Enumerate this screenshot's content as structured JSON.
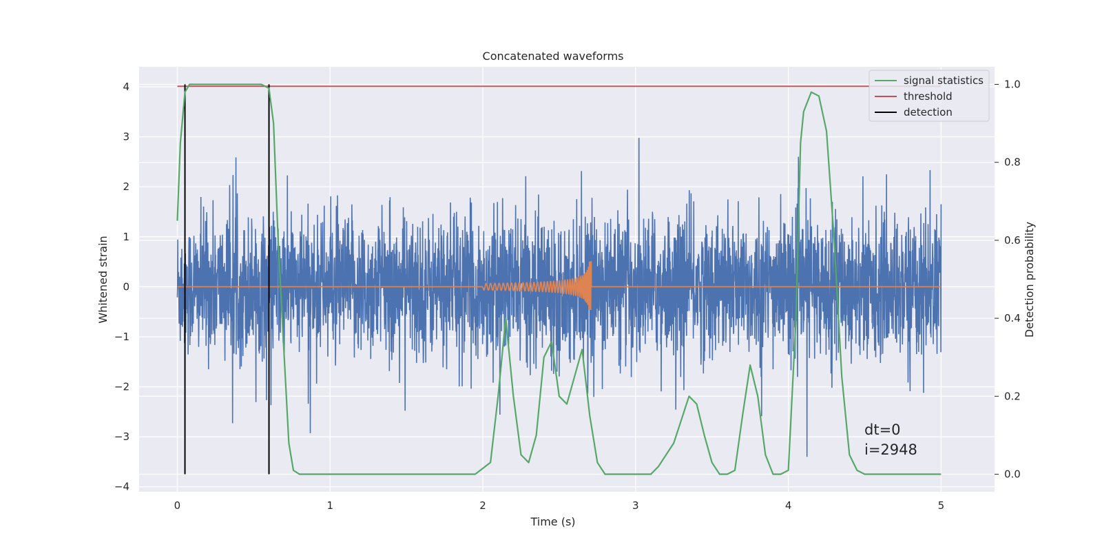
{
  "chart_data": {
    "type": "line",
    "title": "Concatenated waveforms",
    "xlabel": "Time (s)",
    "ylabel": "Whitened strain",
    "y2label": "Detection probability",
    "xlim": [
      -0.25,
      5.35
    ],
    "ylim": [
      -4.1,
      4.4
    ],
    "y2lim": [
      -0.045,
      1.045
    ],
    "x_ticks": [
      "0",
      "1",
      "2",
      "3",
      "4",
      "5"
    ],
    "y_ticks": [
      "4",
      "3",
      "2",
      "1",
      "0",
      "−1",
      "−2",
      "−3",
      "−4"
    ],
    "y2_ticks": [
      "1.0",
      "0.8",
      "0.6",
      "0.4",
      "0.2",
      "0.0"
    ],
    "grid": true,
    "legend_placement": "top-right",
    "colors": {
      "strain": "#4c72b0",
      "template": "#dd8452",
      "signal_statistics": "#55a868",
      "threshold": "#c44e52",
      "detection": "#000000",
      "background": "#eaeaf2",
      "grid": "#ffffff"
    },
    "series": [
      {
        "name": "signal statistics",
        "axis": "right",
        "x": [
          0.0,
          0.02,
          0.05,
          0.08,
          0.15,
          0.3,
          0.45,
          0.55,
          0.6,
          0.63,
          0.66,
          0.7,
          0.73,
          0.76,
          0.8,
          1.0,
          1.5,
          1.95,
          2.05,
          2.1,
          2.15,
          2.2,
          2.25,
          2.3,
          2.35,
          2.4,
          2.45,
          2.5,
          2.55,
          2.6,
          2.65,
          2.7,
          2.75,
          2.8,
          2.85,
          2.9,
          3.0,
          3.1,
          3.15,
          3.2,
          3.25,
          3.3,
          3.35,
          3.4,
          3.45,
          3.5,
          3.55,
          3.6,
          3.65,
          3.7,
          3.75,
          3.8,
          3.85,
          3.9,
          3.95,
          4.0,
          4.05,
          4.08,
          4.1,
          4.15,
          4.2,
          4.25,
          4.3,
          4.35,
          4.4,
          4.45,
          4.5,
          4.6,
          5.0
        ],
        "values": [
          0.65,
          0.85,
          0.98,
          1.0,
          1.0,
          1.0,
          1.0,
          1.0,
          0.99,
          0.9,
          0.6,
          0.3,
          0.08,
          0.01,
          0.0,
          0.0,
          0.0,
          0.0,
          0.03,
          0.2,
          0.4,
          0.2,
          0.05,
          0.03,
          0.1,
          0.3,
          0.34,
          0.2,
          0.18,
          0.25,
          0.32,
          0.15,
          0.03,
          0.0,
          0.0,
          0.0,
          0.0,
          0.0,
          0.02,
          0.05,
          0.08,
          0.14,
          0.2,
          0.18,
          0.1,
          0.03,
          0.0,
          0.0,
          0.01,
          0.15,
          0.28,
          0.2,
          0.05,
          0.0,
          0.0,
          0.01,
          0.4,
          0.85,
          0.93,
          0.98,
          0.97,
          0.88,
          0.6,
          0.25,
          0.05,
          0.01,
          0.0,
          0.0,
          0.0
        ]
      },
      {
        "name": "threshold",
        "axis": "right",
        "x": [
          0.0,
          5.0
        ],
        "values": [
          0.995,
          0.995
        ]
      },
      {
        "name": "detection",
        "axis": "left",
        "x": [
          0.05,
          0.6
        ],
        "values": [
          4.05,
          4.05
        ]
      },
      {
        "name": "",
        "axis": "left",
        "x": [
          0.0,
          5.0
        ],
        "values": [
          0.0,
          0.0
        ],
        "note": "whitened strain noise trace, roughly within -3.2 to 4.0"
      }
    ],
    "annotations": [
      "dt=0",
      "i=2948"
    ]
  }
}
